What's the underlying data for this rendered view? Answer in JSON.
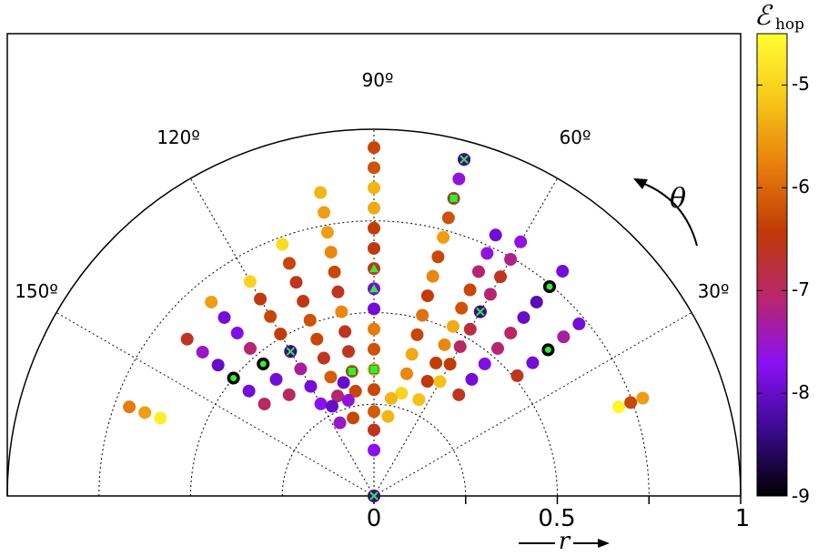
{
  "chart_data": {
    "type": "scatter",
    "projection": "polar-semicircle",
    "title": "",
    "xlabel": "r",
    "theta_label": "θ",
    "r_ticks": [
      "0",
      "0.5",
      "1"
    ],
    "r_range": [
      0,
      1
    ],
    "theta_range_deg": [
      0,
      180
    ],
    "angle_ticks": [
      "90º",
      "120º",
      "60º",
      "150º",
      "30º"
    ],
    "colorbar": {
      "label": "ℰhop",
      "min": -9,
      "max": -4.5,
      "ticks": [
        "-5",
        "-6",
        "-7",
        "-8",
        "-9"
      ],
      "colormap": [
        "#000000",
        "#3b0a8f",
        "#8a10f5",
        "#b8266b",
        "#c03a05",
        "#e87d0d",
        "#f7c719",
        "#ffff33"
      ]
    },
    "grid": true,
    "point_groups": [
      {
        "angle_deg": 90,
        "r": [
          0.0,
          0.125,
          0.18,
          0.23,
          0.29,
          0.345,
          0.4,
          0.455,
          0.51,
          0.565,
          0.62,
          0.675,
          0.73,
          0.785,
          0.84,
          0.895,
          0.95
        ],
        "e": [
          -6.6,
          -7.7,
          -6.6,
          -6.1,
          -6.3,
          -5.5,
          -6.2,
          -5.8,
          -7.9,
          -7.9,
          -6.6,
          -6.5,
          -6.4,
          -5.4,
          -5.3,
          -6.2,
          -6.3
        ]
      },
      {
        "angle_deg": 75,
        "r": [
          0.29,
          0.345,
          0.4,
          0.455,
          0.51,
          0.565,
          0.62,
          0.675,
          0.73,
          0.785,
          0.84,
          0.895,
          0.95
        ],
        "e": [
          -5.0,
          -5.7,
          -5.4,
          -6.3,
          -5.9,
          -6.4,
          -5.7,
          -6.3,
          -5.5,
          -6.2,
          -6.6,
          -7.6,
          -8.0
        ]
      },
      {
        "angle_deg": 100,
        "r": [
          0.29,
          0.345,
          0.4,
          0.455,
          0.51,
          0.565,
          0.62,
          0.675,
          0.73,
          0.785,
          0.84
        ],
        "e": [
          -6.3,
          -6.3,
          -6.6,
          -6.6,
          -5.7,
          -6.6,
          -6.3,
          -5.7,
          -5.5,
          -5.5,
          -5.3
        ]
      },
      {
        "angle_deg": 60,
        "r": [
          0.36,
          0.415,
          0.47,
          0.525,
          0.58,
          0.635,
          0.69,
          0.745,
          0.8
        ],
        "e": [
          -5.2,
          -6.4,
          -7.0,
          -6.8,
          -6.6,
          -7.1,
          -6.6,
          -7.2,
          -7.6
        ]
      },
      {
        "angle_deg": 65,
        "r": [
          0.29,
          0.345,
          0.4,
          0.455,
          0.51,
          0.565,
          0.62,
          0.675,
          0.73,
          0.785
        ],
        "e": [
          -5.2,
          -6.5,
          -6.4,
          -5.7,
          -5.4,
          -6.2,
          -6.3,
          -7.1,
          -7.6,
          -7.9
        ]
      },
      {
        "angle_deg": 110,
        "r": [
          0.29,
          0.345,
          0.4,
          0.455,
          0.51,
          0.565,
          0.62,
          0.675,
          0.73
        ],
        "e": [
          -7.1,
          -6.1,
          -6.6,
          -6.3,
          -6.2,
          -6.5,
          -6.6,
          -6.3,
          -4.9
        ]
      },
      {
        "angle_deg": 120,
        "r": [
          0.29,
          0.345,
          0.4,
          0.455,
          0.51,
          0.565,
          0.62,
          0.675
        ],
        "e": [
          -7.7,
          -7.9,
          -7.3,
          -7.0,
          -6.4,
          -6.3,
          -6.5,
          -5.0
        ]
      },
      {
        "angle_deg": 130,
        "r": [
          0.36,
          0.415,
          0.47,
          0.525,
          0.58,
          0.635,
          0.69
        ],
        "e": [
          -7.0,
          -7.9,
          -7.3,
          -7.1,
          -7.8,
          -7.9,
          -5.5
        ]
      },
      {
        "angle_deg": 140,
        "r": [
          0.39,
          0.445,
          0.5,
          0.555,
          0.61,
          0.665
        ],
        "e": [
          -7.0,
          -7.9,
          -7.8,
          -8.0,
          -7.5,
          -6.6
        ]
      },
      {
        "angle_deg": 50,
        "r": [
          0.36,
          0.415,
          0.47,
          0.525,
          0.58,
          0.635,
          0.69,
          0.745,
          0.8
        ],
        "e": [
          -6.6,
          -7.9,
          -7.8,
          -7.1,
          -7.0,
          -8.0,
          -8.1,
          -7.7,
          -7.9
        ]
      },
      {
        "angle_deg": 40,
        "r": [
          0.51,
          0.565,
          0.62,
          0.675,
          0.73
        ],
        "e": [
          -6.6,
          -7.9,
          -7.8,
          -7.3,
          -7.9
        ]
      },
      {
        "angle_deg": 20,
        "r": [
          0.71,
          0.745,
          0.78
        ],
        "e": [
          -4.6,
          -6.3,
          -5.5
        ]
      },
      {
        "angle_deg": 160,
        "r": [
          0.62,
          0.665,
          0.71
        ],
        "e": [
          -4.7,
          -5.5,
          -5.8
        ]
      },
      {
        "angle_deg": 80,
        "r": [
          0.22,
          0.27
        ],
        "e": [
          -5.3,
          -5.3
        ]
      },
      {
        "angle_deg": 105,
        "r": [
          0.22,
          0.27,
          0.32
        ],
        "e": [
          -6.3,
          -7.6,
          -8.0
        ]
      },
      {
        "angle_deg": 115,
        "r": [
          0.22,
          0.27
        ],
        "e": [
          -7.5,
          -8.0
        ]
      }
    ],
    "marker_legend": [
      {
        "shape": "green-x-on-dot",
        "angle_deg": [
          90,
          75,
          60,
          120
        ],
        "r": [
          0.0,
          0.95,
          0.58,
          0.455
        ]
      },
      {
        "shape": "green-square",
        "angle_deg": [
          90,
          75,
          100
        ],
        "r": [
          0.345,
          0.84,
          0.345
        ]
      },
      {
        "shape": "green-triangle",
        "angle_deg": [
          90,
          90
        ],
        "r": [
          0.565,
          0.62
        ]
      },
      {
        "shape": "black-ring-green-dot",
        "angle_deg": [
          50,
          40,
          140,
          130
        ],
        "r": [
          0.745,
          0.62,
          0.5,
          0.47
        ]
      }
    ]
  }
}
